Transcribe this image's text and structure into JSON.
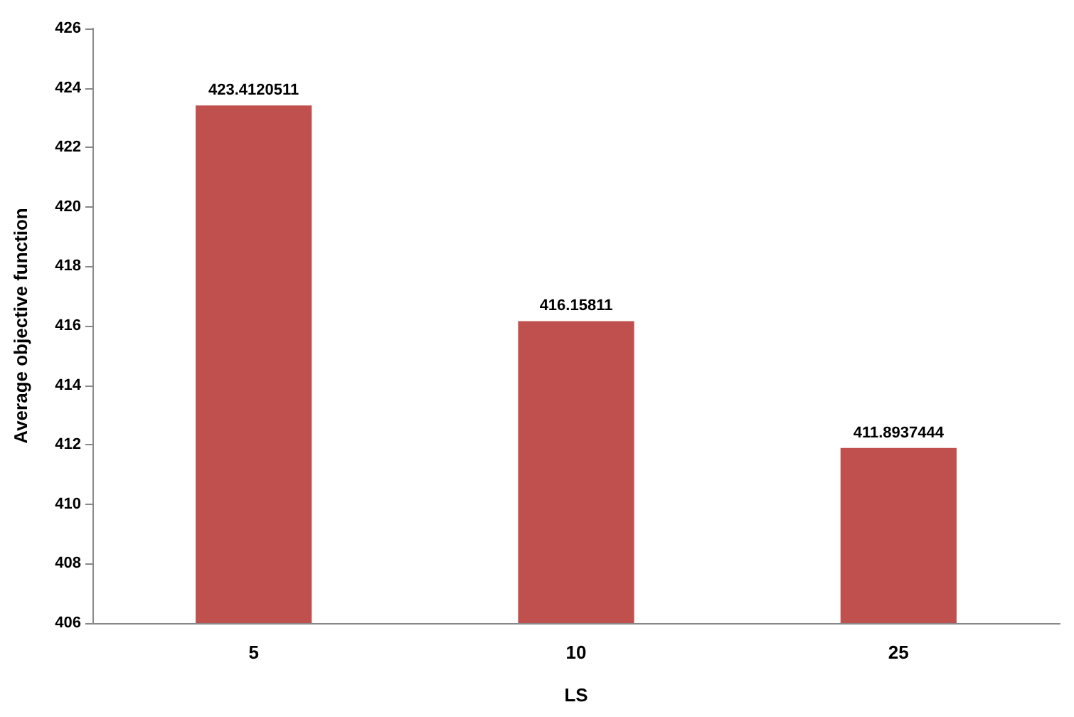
{
  "chart_data": {
    "type": "bar",
    "xlabel": "LS",
    "ylabel": "Average objective function",
    "categories": [
      "5",
      "10",
      "25"
    ],
    "values": [
      423.4120511,
      416.15811,
      411.8937444
    ],
    "color": "#c0504d",
    "ylim": [
      406,
      426
    ],
    "yticks": [
      406,
      408,
      410,
      412,
      414,
      416,
      418,
      420,
      422,
      424,
      426
    ],
    "data_labels": true,
    "grid": false
  }
}
